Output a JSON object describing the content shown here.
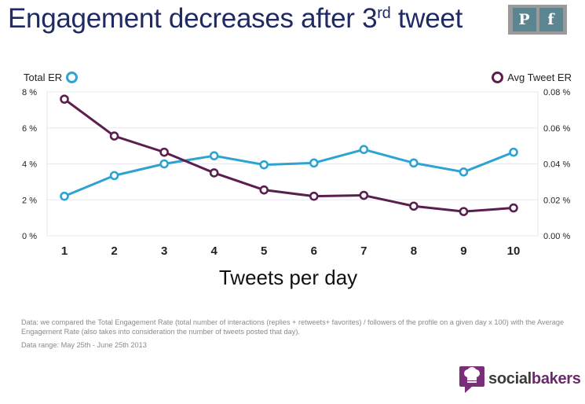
{
  "title": {
    "text": "Engagement decreases after 3",
    "sup": "rd",
    "tail": " tweet"
  },
  "share": {
    "pinterest": "P",
    "facebook": "f"
  },
  "chart_data": {
    "type": "line",
    "categories": [
      "1",
      "2",
      "3",
      "4",
      "5",
      "6",
      "7",
      "8",
      "9",
      "10"
    ],
    "xlabel": "Tweets per day",
    "series": [
      {
        "name": "Total ER",
        "axis": "left",
        "color": "#2ea3d2",
        "values": [
          2.2,
          3.35,
          4.0,
          4.45,
          3.95,
          4.05,
          4.8,
          4.05,
          3.55,
          4.65
        ]
      },
      {
        "name": "Avg Tweet ER",
        "axis": "right",
        "color": "#5a1f4f",
        "values": [
          0.076,
          0.0555,
          0.0465,
          0.035,
          0.0255,
          0.022,
          0.0225,
          0.0165,
          0.0135,
          0.0155
        ]
      }
    ],
    "left_axis": {
      "ticks": [
        "0 %",
        "2 %",
        "4 %",
        "6 %",
        "8 %"
      ],
      "ylim": [
        0,
        8
      ]
    },
    "right_axis": {
      "ticks": [
        "0.00 %",
        "0.02 %",
        "0.04 %",
        "0.06 %",
        "0.08 %"
      ],
      "ylim": [
        0,
        0.08
      ]
    },
    "grid": true,
    "legend": {
      "left": "Total ER",
      "right": "Avg Tweet ER"
    }
  },
  "note": {
    "line1": "Data: we compared the Total Engagement Rate (total number of interactions (replies + retweets+ favorites) / followers of the profile on a given day x 100) with the Average Engagement Rate (also takes into consideration the number of tweets posted that day).",
    "range": "Data range: May 25th - June 25th 2013"
  },
  "brand": {
    "social": "social",
    "bakers": "bakers"
  }
}
